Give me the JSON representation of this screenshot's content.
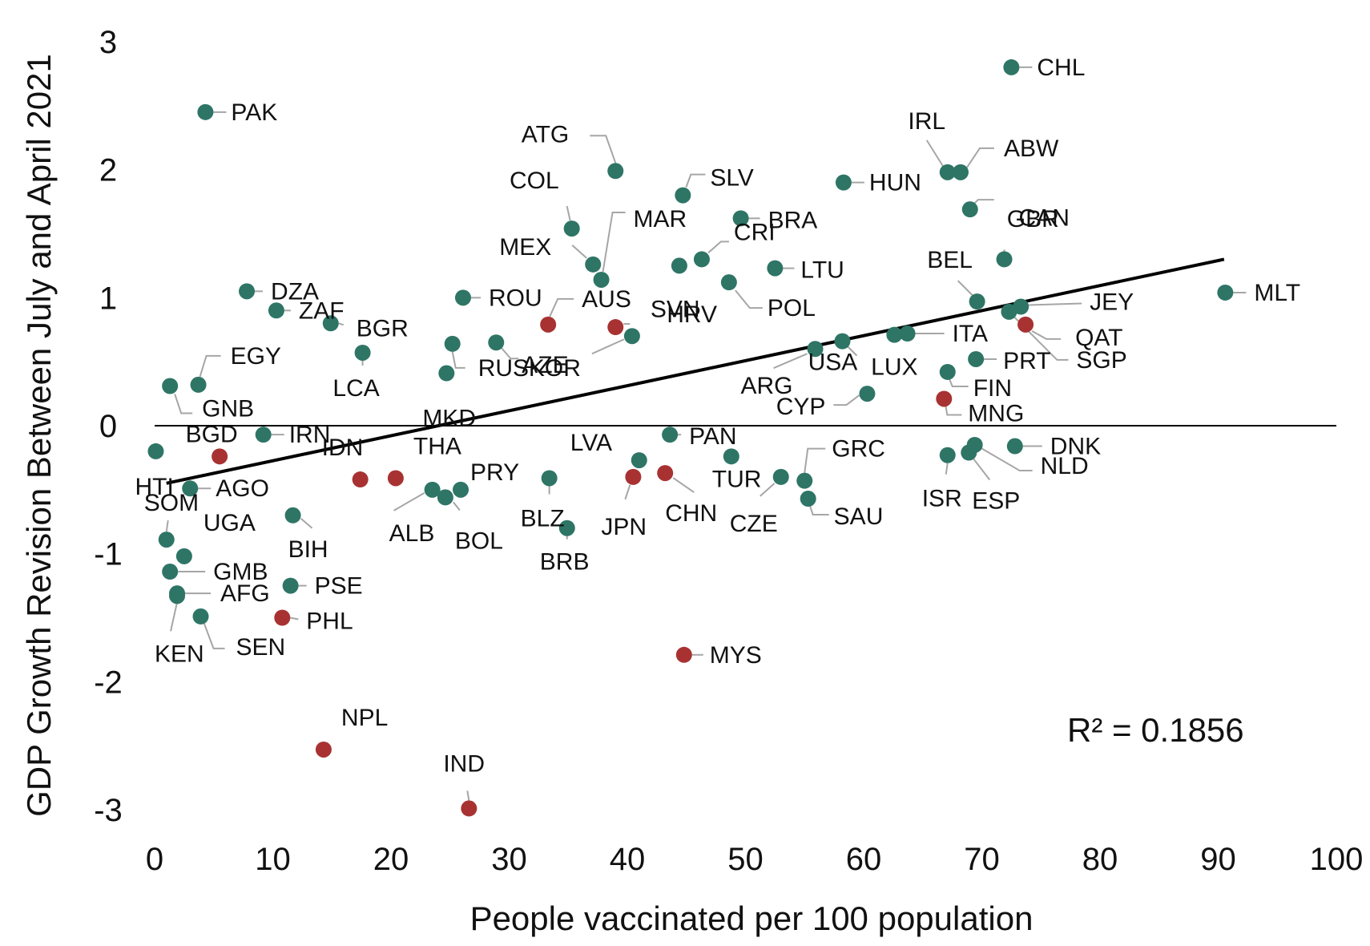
{
  "chart_data": {
    "type": "scatter",
    "title": "",
    "xlabel": "People vaccinated per 100 population",
    "ylabel": "GDP Growth Revision Between July and April 2021",
    "xlim": [
      0,
      100
    ],
    "ylim": [
      -3,
      3
    ],
    "xticks": [
      0,
      10,
      20,
      30,
      40,
      50,
      60,
      70,
      80,
      90,
      100
    ],
    "yticks": [
      -3,
      -2,
      -1,
      0,
      1,
      2,
      3
    ],
    "grid": false,
    "legend": "none",
    "colors": {
      "teal": "#2e7566",
      "red": "#a83232",
      "trend": "#000000",
      "leader": "#a6a6a6"
    },
    "trendline": {
      "x1": 1,
      "y1": -0.45,
      "x2": 90.5,
      "y2": 1.3
    },
    "r_squared_label": "R² = 0.1856",
    "points": [
      {
        "label": "PAK",
        "x": 4.3,
        "y": 2.45,
        "c": "teal"
      },
      {
        "label": "CHL",
        "x": 72.5,
        "y": 2.8,
        "c": "teal"
      },
      {
        "label": "ATG",
        "x": 39,
        "y": 1.99,
        "c": "teal"
      },
      {
        "label": "SLV",
        "x": 44.7,
        "y": 1.8,
        "c": "teal"
      },
      {
        "label": "HUN",
        "x": 58.3,
        "y": 1.9,
        "c": "teal"
      },
      {
        "label": "IRL",
        "x": 67.1,
        "y": 1.98,
        "c": "teal"
      },
      {
        "label": "ABW",
        "x": 68.2,
        "y": 1.98,
        "c": "teal"
      },
      {
        "label": "GBR",
        "x": 69,
        "y": 1.69,
        "c": "teal"
      },
      {
        "label": "CAN",
        "x": 71.9,
        "y": 1.3,
        "c": "teal"
      },
      {
        "label": "COL",
        "x": 35.3,
        "y": 1.54,
        "c": "teal"
      },
      {
        "label": "BRA",
        "x": 49.6,
        "y": 1.62,
        "c": "teal"
      },
      {
        "label": "MEX",
        "x": 37.1,
        "y": 1.26,
        "c": "teal"
      },
      {
        "label": "MAR",
        "x": 37.8,
        "y": 1.14,
        "c": "teal"
      },
      {
        "label": "CRI",
        "x": 46.3,
        "y": 1.3,
        "c": "teal"
      },
      {
        "label": "LTU",
        "x": 52.5,
        "y": 1.23,
        "c": "teal"
      },
      {
        "label": "SVN",
        "x": 44.4,
        "y": 1.25,
        "c": "teal"
      },
      {
        "label": "POL",
        "x": 48.6,
        "y": 1.12,
        "c": "teal"
      },
      {
        "label": "MLT",
        "x": 90.6,
        "y": 1.04,
        "c": "teal"
      },
      {
        "label": "BEL",
        "x": 69.6,
        "y": 0.97,
        "c": "teal"
      },
      {
        "label": "JEY",
        "x": 73.3,
        "y": 0.93,
        "c": "teal"
      },
      {
        "label": "SGP",
        "x": 72.3,
        "y": 0.89,
        "c": "teal"
      },
      {
        "label": "QAT",
        "x": 73.7,
        "y": 0.79,
        "c": "red"
      },
      {
        "label": "ITA",
        "x": 63.7,
        "y": 0.72,
        "c": "teal"
      },
      {
        "label": "LUX",
        "x": 62.6,
        "y": 0.71,
        "c": "teal"
      },
      {
        "label": "PRT",
        "x": 69.5,
        "y": 0.52,
        "c": "teal"
      },
      {
        "label": "FIN",
        "x": 67.1,
        "y": 0.42,
        "c": "teal"
      },
      {
        "label": "MNG",
        "x": 66.8,
        "y": 0.21,
        "c": "red"
      },
      {
        "label": "ARG",
        "x": 55.9,
        "y": 0.6,
        "c": "teal"
      },
      {
        "label": "USA",
        "x": 58.2,
        "y": 0.66,
        "c": "teal"
      },
      {
        "label": "CYP",
        "x": 60.3,
        "y": 0.25,
        "c": "teal"
      },
      {
        "label": "DZA",
        "x": 7.8,
        "y": 1.05,
        "c": "teal"
      },
      {
        "label": "ZAF",
        "x": 10.3,
        "y": 0.9,
        "c": "teal"
      },
      {
        "label": "BGR",
        "x": 14.9,
        "y": 0.8,
        "c": "teal"
      },
      {
        "label": "ROU",
        "x": 26.1,
        "y": 1.0,
        "c": "teal"
      },
      {
        "label": "AUS",
        "x": 33.3,
        "y": 0.79,
        "c": "red"
      },
      {
        "label": "HRV",
        "x": 39,
        "y": 0.77,
        "c": "red"
      },
      {
        "label": "KOR",
        "x": 40.4,
        "y": 0.7,
        "c": "teal"
      },
      {
        "label": "AZE",
        "x": 28.9,
        "y": 0.65,
        "c": "teal"
      },
      {
        "label": "RUS",
        "x": 25.2,
        "y": 0.64,
        "c": "teal"
      },
      {
        "label": "MKD",
        "x": 24.7,
        "y": 0.41,
        "c": "teal"
      },
      {
        "label": "EGY",
        "x": 3.7,
        "y": 0.32,
        "c": "teal"
      },
      {
        "label": "LCA",
        "x": 17.6,
        "y": 0.57,
        "c": "teal"
      },
      {
        "label": "GNB",
        "x": 1.3,
        "y": 0.31,
        "c": "teal"
      },
      {
        "label": "BGD",
        "x": 5.5,
        "y": -0.24,
        "c": "red"
      },
      {
        "label": "IRN",
        "x": 9.2,
        "y": -0.07,
        "c": "teal"
      },
      {
        "label": "HTI",
        "x": 0.1,
        "y": -0.2,
        "c": "teal"
      },
      {
        "label": "AGO",
        "x": 3,
        "y": -0.49,
        "c": "teal"
      },
      {
        "label": "SOM",
        "x": 1,
        "y": -0.89,
        "c": "teal"
      },
      {
        "label": "UGA",
        "x": 2.5,
        "y": -1.02,
        "c": "teal"
      },
      {
        "label": "GMB",
        "x": 1.3,
        "y": -1.14,
        "c": "teal"
      },
      {
        "label": "AFG",
        "x": 1.9,
        "y": -1.31,
        "c": "teal"
      },
      {
        "label": "KEN",
        "x": 1.9,
        "y": -1.33,
        "c": "teal"
      },
      {
        "label": "SEN",
        "x": 3.9,
        "y": -1.49,
        "c": "teal"
      },
      {
        "label": "BIH",
        "x": 11.7,
        "y": -0.7,
        "c": "teal"
      },
      {
        "label": "PSE",
        "x": 11.5,
        "y": -1.25,
        "c": "teal"
      },
      {
        "label": "PHL",
        "x": 10.8,
        "y": -1.5,
        "c": "red"
      },
      {
        "label": "IDN",
        "x": 17.4,
        "y": -0.42,
        "c": "red"
      },
      {
        "label": "THA",
        "x": 20.4,
        "y": -0.41,
        "c": "red"
      },
      {
        "label": "ALB",
        "x": 23.5,
        "y": -0.5,
        "c": "teal"
      },
      {
        "label": "BOL",
        "x": 24.6,
        "y": -0.56,
        "c": "teal"
      },
      {
        "label": "PRY",
        "x": 25.9,
        "y": -0.5,
        "c": "teal"
      },
      {
        "label": "BLZ",
        "x": 33.4,
        "y": -0.41,
        "c": "teal"
      },
      {
        "label": "BRB",
        "x": 34.9,
        "y": -0.8,
        "c": "teal"
      },
      {
        "label": "LVA",
        "x": 41,
        "y": -0.27,
        "c": "teal"
      },
      {
        "label": "JPN",
        "x": 40.5,
        "y": -0.4,
        "c": "red"
      },
      {
        "label": "CHN",
        "x": 43.2,
        "y": -0.37,
        "c": "red"
      },
      {
        "label": "PAN",
        "x": 43.6,
        "y": -0.07,
        "c": "teal"
      },
      {
        "label": "TUR",
        "x": 48.8,
        "y": -0.24,
        "c": "teal"
      },
      {
        "label": "CZE",
        "x": 53,
        "y": -0.4,
        "c": "teal"
      },
      {
        "label": "GRC",
        "x": 55,
        "y": -0.43,
        "c": "teal"
      },
      {
        "label": "SAU",
        "x": 55.3,
        "y": -0.57,
        "c": "teal"
      },
      {
        "label": "ISR",
        "x": 67.1,
        "y": -0.23,
        "c": "teal"
      },
      {
        "label": "ESP",
        "x": 68.9,
        "y": -0.21,
        "c": "teal"
      },
      {
        "label": "NLD",
        "x": 69.4,
        "y": -0.15,
        "c": "teal"
      },
      {
        "label": "DNK",
        "x": 72.8,
        "y": -0.16,
        "c": "teal"
      },
      {
        "label": "MYS",
        "x": 44.8,
        "y": -1.79,
        "c": "red"
      },
      {
        "label": "NPL",
        "x": 14.3,
        "y": -2.53,
        "c": "red"
      },
      {
        "label": "IND",
        "x": 26.6,
        "y": -2.99,
        "c": "red"
      }
    ]
  }
}
